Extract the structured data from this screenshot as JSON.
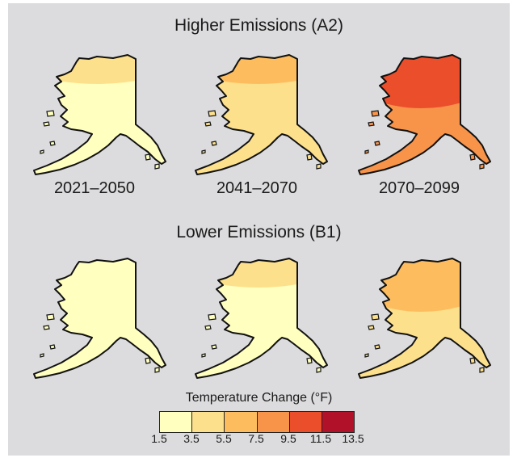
{
  "title_high": "Higher Emissions (A2)",
  "title_low": "Lower Emissions (B1)",
  "periods": [
    "2021–2050",
    "2041–2070",
    "2070–2099"
  ],
  "legend": {
    "title": "Temperature Change (°F)",
    "ticks": [
      "1.5",
      "3.5",
      "5.5",
      "7.5",
      "9.5",
      "11.5",
      "13.5"
    ],
    "colors": [
      "#ffffbf",
      "#fde08b",
      "#fdbd5e",
      "#f8934a",
      "#ea4e2b",
      "#b2112a"
    ]
  },
  "maps": [
    {
      "scenario": "A2",
      "period": "2021–2050",
      "bands": [
        "#ffffbf",
        "#fde08b"
      ]
    },
    {
      "scenario": "A2",
      "period": "2041–2070",
      "bands": [
        "#fde08b",
        "#fdbd5e"
      ]
    },
    {
      "scenario": "A2",
      "period": "2070–2099",
      "bands": [
        "#f8934a",
        "#ea4e2b",
        "#b2112a"
      ]
    },
    {
      "scenario": "B1",
      "period": "2021–2050",
      "bands": [
        "#ffffbf"
      ]
    },
    {
      "scenario": "B1",
      "period": "2041–2070",
      "bands": [
        "#ffffbf",
        "#fde08b"
      ]
    },
    {
      "scenario": "B1",
      "period": "2070–2099",
      "bands": [
        "#fde08b",
        "#fdbd5e",
        "#f8934a"
      ]
    }
  ]
}
